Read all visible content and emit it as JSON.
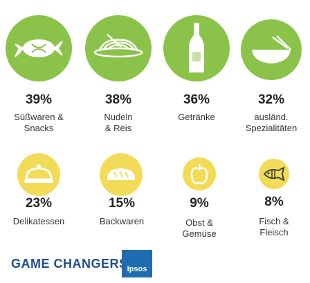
{
  "chart_data": {
    "type": "pictogram",
    "categories": [
      {
        "value": "39%",
        "label_lines": [
          "Süßwaren &",
          "Snacks"
        ],
        "icon": "candy-icon",
        "color": "#8bc34a"
      },
      {
        "value": "38%",
        "label_lines": [
          "Nudeln",
          "& Reis"
        ],
        "icon": "noodles-icon",
        "color": "#8bc34a"
      },
      {
        "value": "36%",
        "label_lines": [
          "Getränke"
        ],
        "icon": "bottle-icon",
        "color": "#8bc34a"
      },
      {
        "value": "32%",
        "label_lines": [
          "ausländ.",
          "Spezialitäten"
        ],
        "icon": "bowl-icon",
        "color": "#8bc34a"
      },
      {
        "value": "23%",
        "label_lines": [
          "Delikatessen"
        ],
        "icon": "cloche-icon",
        "color": "#f2dc57"
      },
      {
        "value": "15%",
        "label_lines": [
          "Backwaren"
        ],
        "icon": "bread-icon",
        "color": "#f2dc57"
      },
      {
        "value": "9%",
        "label_lines": [
          "Obst &",
          "Gemüse"
        ],
        "icon": "apple-icon",
        "color": "#f2dc57"
      },
      {
        "value": "8%",
        "label_lines": [
          "Fisch &",
          "Fleisch"
        ],
        "icon": "fish-icon",
        "color": "#f2dc57"
      }
    ]
  },
  "footer": {
    "brand": "GAME CHANGERS",
    "logo_text": "Ipsos"
  }
}
